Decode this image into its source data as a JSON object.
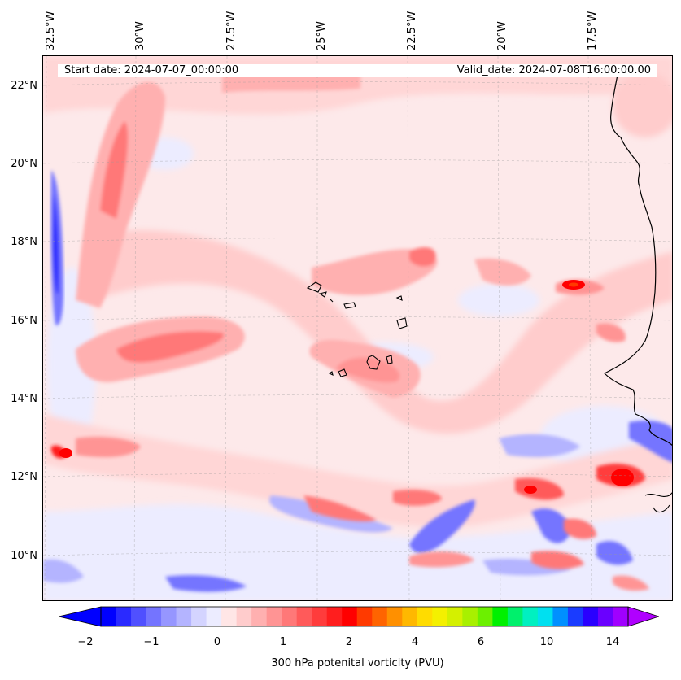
{
  "header": {
    "start_date": "Start date: 2024-07-07_00:00:00",
    "valid_date": "Valid_date: 2024-07-08T16:00:00.00"
  },
  "lon_labels": [
    "32.5°W",
    "30°W",
    "27.5°W",
    "25°W",
    "22.5°W",
    "20°W",
    "17.5°W"
  ],
  "lat_labels": [
    "22°N",
    "20°N",
    "18°N",
    "16°N",
    "14°N",
    "12°N",
    "10°N"
  ],
  "colorbar": {
    "title": "300 hPa potenital vorticity (PVU)",
    "ticks": [
      "−2",
      "−1",
      "0",
      "1",
      "2",
      "4",
      "6",
      "10",
      "14"
    ],
    "colors": [
      "#0000ff",
      "#2a2aff",
      "#5050ff",
      "#7474ff",
      "#9696ff",
      "#b4b4ff",
      "#d4d4ff",
      "#ececff",
      "#ffe6e6",
      "#ffcccc",
      "#ffb0b0",
      "#ff9494",
      "#ff7878",
      "#ff5a5a",
      "#ff3c3c",
      "#ff1e1e",
      "#ff0000",
      "#ff3a00",
      "#ff6400",
      "#ff9000",
      "#ffb800",
      "#ffdc00",
      "#f4f000",
      "#d4f000",
      "#a8f000",
      "#6cf000",
      "#00f000",
      "#00f06c",
      "#00f0c0",
      "#00e0f0",
      "#0090ff",
      "#1a3cff",
      "#2a00ff",
      "#6a00ff",
      "#a000ff"
    ],
    "extend_low_color": "#0000ff",
    "extend_high_color": "#b000ff"
  },
  "map": {
    "background_color": "#fde9ea",
    "coastline_color": "#000000",
    "features": [
      "pv-streamer-west",
      "pv-band-central",
      "pv-tongue-cape-verde",
      "negative-pv-band-south",
      "west-african-coast",
      "cape-verde-islands"
    ]
  }
}
